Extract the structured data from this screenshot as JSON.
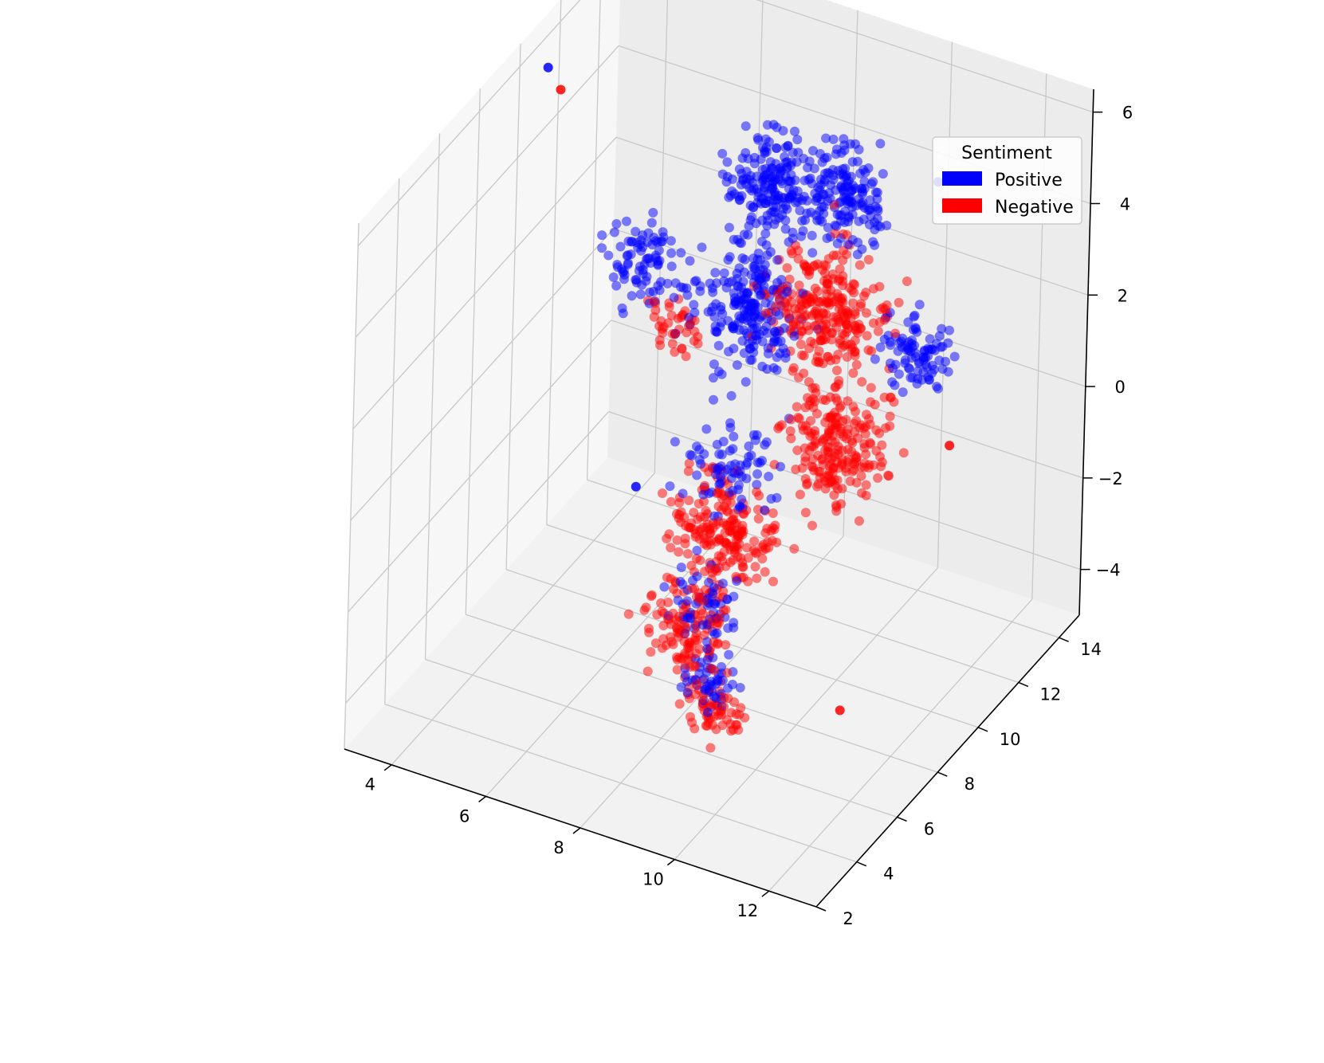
{
  "chart_data": {
    "type": "scatter",
    "dimensions": 3,
    "title": "",
    "xlabel": "",
    "ylabel": "",
    "zlabel": "",
    "xlim": [
      3,
      13
    ],
    "ylim": [
      2,
      15
    ],
    "zlim": [
      -5,
      6.5
    ],
    "x_ticks": [
      "4",
      "6",
      "8",
      "10",
      "12"
    ],
    "y_ticks": [
      "2",
      "4",
      "6",
      "8",
      "10",
      "12",
      "14"
    ],
    "z_ticks": [
      "−4",
      "−2",
      "0",
      "2",
      "4",
      "6"
    ],
    "grid": true,
    "legend": {
      "title": "Sentiment",
      "placement": "top-right",
      "entries": [
        {
          "label": "Positive",
          "color": "#0000ff"
        },
        {
          "label": "Negative",
          "color": "#ff0000"
        }
      ]
    },
    "series": [
      {
        "name": "Positive",
        "color": "#0000ff",
        "clusters": [
          {
            "x": 7.5,
            "y": 12.0,
            "z": 4.0,
            "spread": 0.6,
            "count": 180
          },
          {
            "x": 9.0,
            "y": 12.0,
            "z": 4.3,
            "spread": 0.6,
            "count": 160
          },
          {
            "x": 8.0,
            "y": 10.0,
            "z": 2.5,
            "spread": 0.8,
            "count": 220
          },
          {
            "x": 10.5,
            "y": 12.5,
            "z": 1.0,
            "spread": 0.5,
            "count": 90
          },
          {
            "x": 6.0,
            "y": 9.5,
            "z": 3.0,
            "spread": 0.6,
            "count": 90
          },
          {
            "x": 8.5,
            "y": 8.0,
            "z": 0.0,
            "spread": 0.7,
            "count": 80
          },
          {
            "x": 8.0,
            "y": 8.0,
            "z": -3.0,
            "spread": 0.5,
            "count": 60
          },
          {
            "x": 8.0,
            "y": 8.5,
            "z": -5.0,
            "spread": 0.4,
            "count": 50
          }
        ],
        "outliers": [
          {
            "x": 3.8,
            "y": 9.5,
            "z": 6.5
          },
          {
            "x": 10.2,
            "y": 14.0,
            "z": 4.0
          },
          {
            "x": 6.5,
            "y": 8.0,
            "z": -1.0
          }
        ]
      },
      {
        "name": "Negative",
        "color": "#ff0000",
        "clusters": [
          {
            "x": 9.0,
            "y": 11.5,
            "z": 2.0,
            "spread": 0.8,
            "count": 260
          },
          {
            "x": 9.5,
            "y": 11.0,
            "z": -0.5,
            "spread": 0.8,
            "count": 220
          },
          {
            "x": 8.0,
            "y": 9.0,
            "z": -2.0,
            "spread": 0.7,
            "count": 200
          },
          {
            "x": 7.5,
            "y": 8.5,
            "z": -4.0,
            "spread": 0.6,
            "count": 120
          },
          {
            "x": 8.0,
            "y": 8.5,
            "z": -5.5,
            "spread": 0.4,
            "count": 60
          },
          {
            "x": 6.5,
            "y": 10.0,
            "z": 1.5,
            "spread": 0.4,
            "count": 40
          }
        ],
        "outliers": [
          {
            "x": 10.5,
            "y": 9.0,
            "z": -5.0
          },
          {
            "x": 11.0,
            "y": 13.0,
            "z": -1.0
          },
          {
            "x": 4.2,
            "y": 9.2,
            "z": 6.3
          }
        ]
      }
    ]
  }
}
